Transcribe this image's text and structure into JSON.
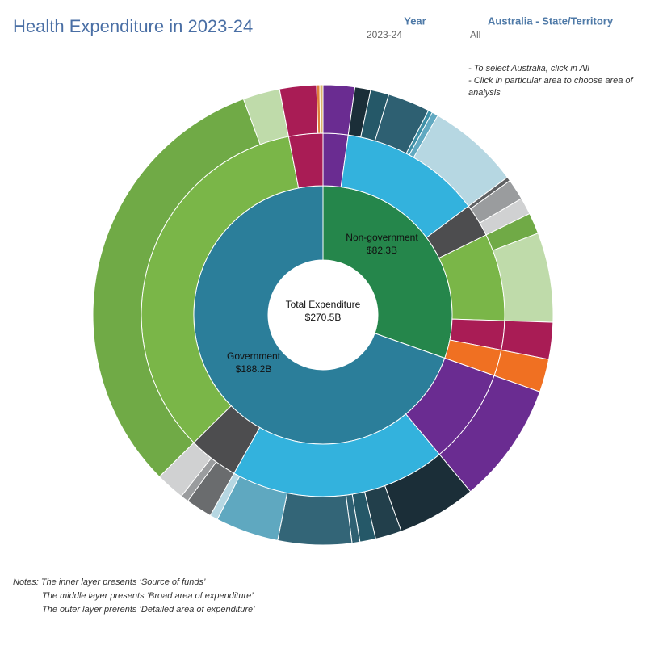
{
  "header": {
    "year_label": "Year",
    "year_value": "2023-24",
    "region_label": "Australia - State/Territory",
    "region_value": "All",
    "instructions": [
      "- To select Australia, click in All",
      "- Click in particular area to choose area of",
      "analysis"
    ]
  },
  "notes": [
    "Notes: The inner layer presents  ‘Source of funds’",
    "The middle layer presents  ‘Broad area of expenditure’",
    "The outer layer prerents  ‘Detailed area of expenditure’"
  ],
  "chart_data": {
    "type": "sunburst",
    "title": "Health Expenditure in 2023-24",
    "total": {
      "label": "Total Expenditure",
      "value": 270.5,
      "value_label": "$270.5B"
    },
    "sources": [
      {
        "name": "Non-government",
        "value": 82.3,
        "value_label": "$82.3B",
        "color": "#25864b",
        "areas": [
          {
            "value": 6,
            "color": "#6a2c91",
            "details": [
              {
                "value": 6,
                "color": "#6a2c91"
              }
            ]
          },
          {
            "value": 34,
            "color": "#33b2dd",
            "details": [
              {
                "value": 3,
                "color": "#1b2e38"
              },
              {
                "value": 3.5,
                "color": "#255868"
              },
              {
                "value": 8,
                "color": "#2e6072"
              },
              {
                "value": 0.8,
                "color": "#3d8ea5"
              },
              {
                "value": 1.2,
                "color": "#61a9c1"
              },
              {
                "value": 17.5,
                "color": "#b6d7e2"
              }
            ]
          },
          {
            "value": 8,
            "color": "#4d4d4f",
            "details": [
              {
                "value": 0.8,
                "color": "#5f6062"
              },
              {
                "value": 4,
                "color": "#9a9c9e"
              },
              {
                "value": 3.2,
                "color": "#d0d1d2"
              }
            ]
          },
          {
            "value": 21,
            "color": "#7ab648",
            "details": [
              {
                "value": 4,
                "color": "#70aa46"
              },
              {
                "value": 17,
                "color": "#bfdbaa"
              }
            ]
          },
          {
            "value": 7,
            "color": "#a91c55",
            "details": [
              {
                "value": 7,
                "color": "#a91c55"
              }
            ]
          },
          {
            "value": 6.3,
            "color": "#f07022",
            "details": [
              {
                "value": 6.3,
                "color": "#f07022"
              }
            ]
          }
        ]
      },
      {
        "name": "Government",
        "value": 188.2,
        "value_label": "$188.2B",
        "color": "#2b7e9a",
        "areas": [
          {
            "value": 23,
            "color": "#6a2c91",
            "details": [
              {
                "value": 23,
                "color": "#6a2c91"
              }
            ]
          },
          {
            "value": 52,
            "color": "#33b2dd",
            "details": [
              {
                "value": 15,
                "color": "#1b2e38"
              },
              {
                "value": 5,
                "color": "#223f4b"
              },
              {
                "value": 3,
                "color": "#255868"
              },
              {
                "value": 1.5,
                "color": "#2e6072"
              },
              {
                "value": 14,
                "color": "#336577"
              },
              {
                "value": 12,
                "color": "#5fa8c0"
              },
              {
                "value": 1.5,
                "color": "#b6d7e2"
              }
            ]
          },
          {
            "value": 12,
            "color": "#4d4d4f",
            "details": [
              {
                "value": 5,
                "color": "#6a6c6e"
              },
              {
                "value": 1.5,
                "color": "#9a9c9e"
              },
              {
                "value": 5.5,
                "color": "#d0d1d2"
              }
            ]
          },
          {
            "value": 93,
            "color": "#7ab648",
            "details": [
              {
                "value": 86,
                "color": "#70aa46"
              },
              {
                "value": 7,
                "color": "#bfdbaa"
              }
            ]
          },
          {
            "value": 8.2,
            "color": "#a91c55",
            "details": [
              {
                "value": 7,
                "color": "#a91c55"
              },
              {
                "value": 0.6,
                "color": "#e0803a"
              },
              {
                "value": 0.6,
                "color": "#d9b36a"
              }
            ]
          }
        ]
      }
    ]
  }
}
